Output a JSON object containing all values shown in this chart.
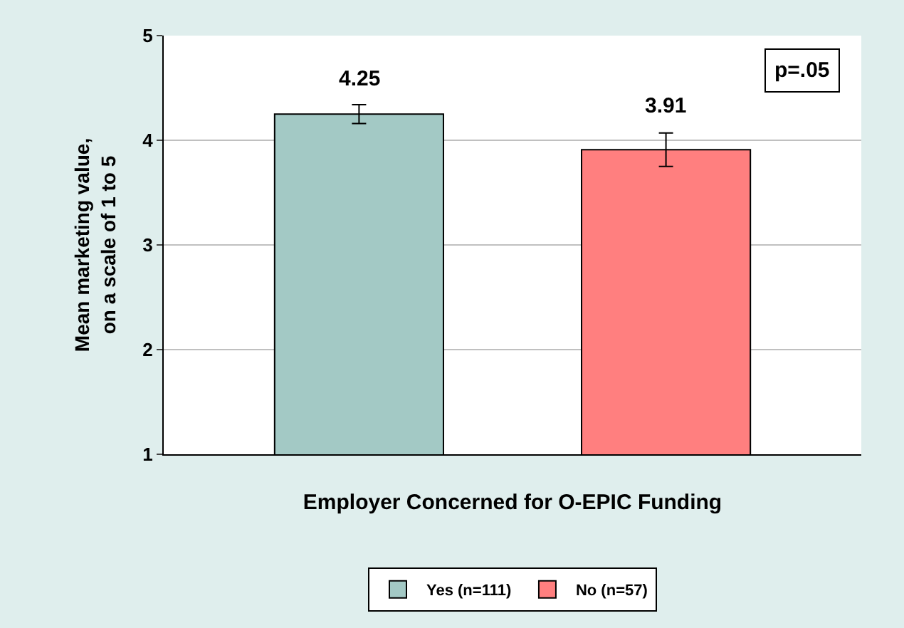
{
  "chart_data": {
    "type": "bar",
    "xlabel": "Employer Concerned for O-EPIC Funding",
    "ylabel": "Mean marketing value, on a scale of 1 to 5",
    "categories": [
      null
    ],
    "series": [
      {
        "name": "Yes (n=111)",
        "color": "#a3c9c5",
        "values": [
          4.25
        ],
        "errors": [
          0.09
        ]
      },
      {
        "name": "No (n=57)",
        "color": "#ff7f7f",
        "values": [
          3.91
        ],
        "errors": [
          0.16
        ]
      }
    ],
    "ylim": [
      1,
      5
    ],
    "yticks": [
      1,
      2,
      3,
      4,
      5
    ],
    "grid": "y",
    "data_labels": true,
    "legend": "bottom",
    "annotations": [
      "p=.05"
    ]
  }
}
